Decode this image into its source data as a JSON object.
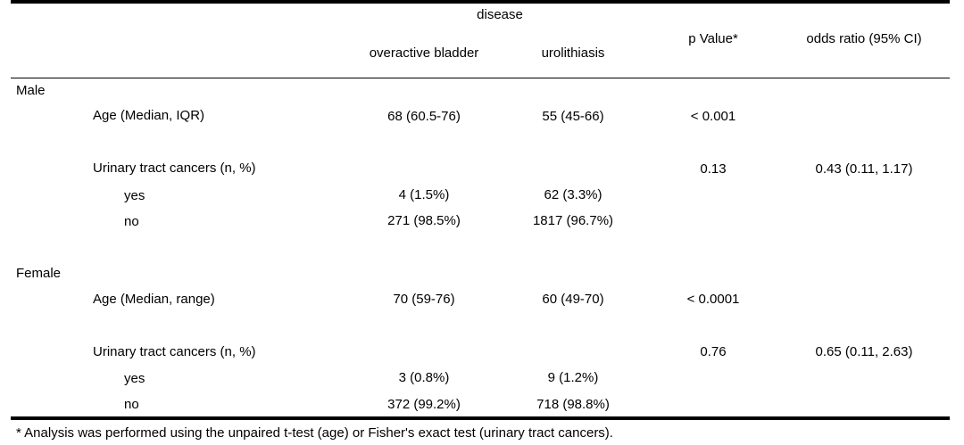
{
  "header": {
    "disease": "disease",
    "col_oab": "overactive bladder",
    "col_uro": "urolithiasis",
    "col_p": "p Value*",
    "col_or": "odds ratio (95% CI)"
  },
  "male": {
    "label": "Male",
    "age": {
      "label": "Age (Median, IQR)",
      "oab": "68 (60.5-76)",
      "uro": "55 (45-66)",
      "p": "< 0.001"
    },
    "cancers": {
      "label": "Urinary tract cancers (n, %)",
      "p": "0.13",
      "or": "0.43 (0.11, 1.17)"
    },
    "yes": {
      "label": "yes",
      "oab": "4 (1.5%)",
      "uro": "62 (3.3%)"
    },
    "no": {
      "label": "no",
      "oab": "271 (98.5%)",
      "uro": "1817 (96.7%)"
    }
  },
  "female": {
    "label": "Female",
    "age": {
      "label": "Age (Median, range)",
      "oab": "70 (59-76)",
      "uro": "60 (49-70)",
      "p": "< 0.0001"
    },
    "cancers": {
      "label": "Urinary tract cancers (n, %)",
      "p": "0.76",
      "or": "0.65 (0.11, 2.63)"
    },
    "yes": {
      "label": "yes",
      "oab": "3 (0.8%)",
      "uro": "9 (1.2%)"
    },
    "no": {
      "label": "no",
      "oab": "372 (99.2%)",
      "uro": "718 (98.8%)"
    }
  },
  "footnote": "* Analysis was performed using the unpaired t-test (age) or Fisher's exact test (urinary tract cancers)."
}
